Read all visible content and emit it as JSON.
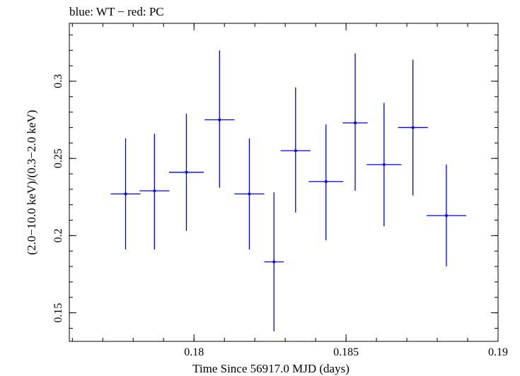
{
  "chart_data": {
    "type": "scatter",
    "title": "blue: WT − red: PC",
    "xlabel": "Time Since 56917.0 MJD (days)",
    "ylabel": "(2.0−10.0 keV)/(0.3−2.0 keV)",
    "xlim": [
      0.1759,
      0.19
    ],
    "ylim": [
      0.1315,
      0.3375
    ],
    "x_ticks": [
      0.18,
      0.185,
      0.19
    ],
    "x_tick_labels": [
      "0.18",
      "0.185",
      "0.19"
    ],
    "y_ticks": [
      0.15,
      0.2,
      0.25,
      0.3
    ],
    "y_tick_labels": [
      "0.15",
      "0.2",
      "0.25",
      "0.3"
    ],
    "grid": false,
    "colors": {
      "WT": "#0000ee"
    },
    "series": [
      {
        "color": "#0000ee",
        "points": [
          {
            "x": 0.17775,
            "y": 0.227,
            "xerr": 0.00049,
            "ylo": 0.191,
            "yhi": 0.263
          },
          {
            "x": 0.1787,
            "y": 0.229,
            "xerr": 0.00049,
            "ylo": 0.191,
            "yhi": 0.266
          },
          {
            "x": 0.17975,
            "y": 0.241,
            "xerr": 0.00057,
            "ylo": 0.203,
            "yhi": 0.279
          },
          {
            "x": 0.18084,
            "y": 0.275,
            "xerr": 0.00049,
            "ylo": 0.231,
            "yhi": 0.32
          },
          {
            "x": 0.18182,
            "y": 0.227,
            "xerr": 0.00049,
            "ylo": 0.191,
            "yhi": 0.263
          },
          {
            "x": 0.18263,
            "y": 0.183,
            "xerr": 0.00032,
            "ylo": 0.138,
            "yhi": 0.228
          },
          {
            "x": 0.18334,
            "y": 0.255,
            "xerr": 0.00049,
            "ylo": 0.215,
            "yhi": 0.296
          },
          {
            "x": 0.18434,
            "y": 0.235,
            "xerr": 0.00057,
            "ylo": 0.197,
            "yhi": 0.272
          },
          {
            "x": 0.1853,
            "y": 0.273,
            "xerr": 0.00041,
            "ylo": 0.229,
            "yhi": 0.318
          },
          {
            "x": 0.18625,
            "y": 0.246,
            "xerr": 0.00057,
            "ylo": 0.206,
            "yhi": 0.286
          },
          {
            "x": 0.1872,
            "y": 0.27,
            "xerr": 0.00049,
            "ylo": 0.226,
            "yhi": 0.314
          },
          {
            "x": 0.1883,
            "y": 0.213,
            "xerr": 0.00065,
            "ylo": 0.18,
            "yhi": 0.246
          }
        ]
      }
    ]
  }
}
